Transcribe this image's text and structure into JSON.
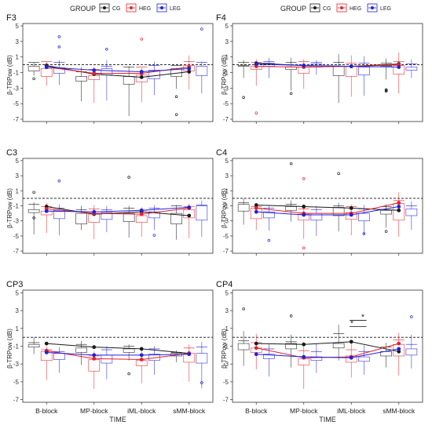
{
  "chart_data": {
    "type": "box",
    "layout": "3x2 grid of panels, each with a legend",
    "legend_title": "GROUP",
    "series": [
      {
        "name": "CG",
        "color": "#1a1a1a"
      },
      {
        "name": "HEG",
        "color": "#e8202a"
      },
      {
        "name": "LEG",
        "color": "#2020e0"
      }
    ],
    "categories": [
      "B-block",
      "MP-block",
      "iML-block",
      "sMM-block"
    ],
    "xlabel": "TIME",
    "ylabel": "β-TRPow (dB)",
    "yticks": [
      5,
      3,
      1,
      -1,
      -3,
      -5,
      -7
    ],
    "ylim": [
      -7.3,
      5.3
    ],
    "reference_line": 0,
    "panels": [
      {
        "title": "F3",
        "means": {
          "CG": [
            -0.1,
            -1.2,
            -1.6,
            -0.9
          ],
          "HEG": [
            -0.3,
            -1.1,
            -1.1,
            -0.3
          ],
          "LEG": [
            -0.3,
            -0.7,
            -0.9,
            -0.5
          ]
        },
        "boxes": {
          "CG": [
            [
              0.3,
              -0.2,
              0.3,
              -0.8,
              -1.4
            ],
            [
              -0.3,
              -1.5,
              -0.9,
              -2.1,
              -4.7
            ],
            [
              -0.2,
              -1.5,
              -0.3,
              -2.5,
              -6.6
            ],
            [
              -0.4,
              -0.5,
              -0.1,
              -1.5,
              -3.1
            ]
          ],
          "HEG": [
            [
              0.4,
              -0.5,
              0.4,
              -1.5,
              -2.7
            ],
            [
              -0.3,
              -1.4,
              -0.6,
              -1.9,
              -4.9
            ],
            [
              -0.4,
              -1.3,
              -0.3,
              -2.2,
              -4.8
            ],
            [
              1.2,
              -0.1,
              0.4,
              -0.8,
              -3.2
            ]
          ],
          "LEG": [
            [
              0.6,
              -0.4,
              0.3,
              -1.1,
              -2.6
            ],
            [
              0.6,
              -0.5,
              -0.2,
              -1.3,
              -4.6
            ],
            [
              0.4,
              -0.7,
              -0.1,
              -1.8,
              -3.9
            ],
            [
              0.4,
              -0.2,
              0.3,
              -1.4,
              -3.7
            ]
          ]
        },
        "outliers": {
          "CG": [
            [
              -1.8
            ],
            [],
            [],
            [
              -4.1,
              -6.4
            ]
          ],
          "HEG": [
            [],
            [],
            [
              3.3
            ],
            []
          ],
          "LEG": [
            [
              2.3,
              3.6
            ],
            [
              2.0
            ],
            [],
            [
              4.6
            ]
          ]
        },
        "significance": []
      },
      {
        "title": "F4",
        "means": {
          "CG": [
            0.2,
            -0.1,
            -0.2,
            0.1
          ],
          "HEG": [
            -0.2,
            -0.3,
            -0.2,
            0.0
          ],
          "LEG": [
            0.1,
            -0.1,
            -0.2,
            -0.3
          ]
        },
        "boxes": {
          "CG": [
            [
              0.6,
              -0.1,
              0.3,
              -0.1,
              -1.7
            ],
            [
              0.9,
              -0.3,
              0.3,
              -0.6,
              -3.3
            ],
            [
              1.4,
              -0.2,
              0.3,
              -1.4,
              -4.9
            ],
            [
              0.8,
              -0.1,
              0.2,
              -0.2,
              -1.9
            ]
          ],
          "HEG": [
            [
              0.7,
              -0.2,
              0.3,
              -0.6,
              -2.7
            ],
            [
              0.7,
              -0.3,
              0.4,
              -1.1,
              -3.1
            ],
            [
              1.2,
              -0.2,
              0.2,
              -1.5,
              -4.1
            ],
            [
              1.6,
              -0.1,
              0.4,
              -1.2,
              -3.7
            ]
          ],
          "LEG": [
            [
              0.9,
              0.2,
              0.4,
              -0.2,
              -1.7
            ],
            [
              0.6,
              0.1,
              0.3,
              -0.3,
              -1.3
            ],
            [
              1.1,
              -0.3,
              0.2,
              -1.3,
              -4.0
            ],
            [
              0.7,
              -0.3,
              0.1,
              -0.7,
              -1.7
            ]
          ]
        },
        "outliers": {
          "CG": [
            [
              -4.2
            ],
            [
              -3.7
            ],
            [],
            [
              -3.2,
              -3.3,
              -3.4
            ]
          ],
          "HEG": [
            [
              -6.2
            ],
            [],
            [],
            []
          ],
          "LEG": [
            [],
            [],
            [],
            []
          ]
        },
        "significance": []
      },
      {
        "title": "C3",
        "means": {
          "CG": [
            -1.1,
            -2.1,
            -1.8,
            -2.3
          ],
          "HEG": [
            -1.4,
            -2.0,
            -2.1,
            -1.3
          ],
          "LEG": [
            -1.7,
            -1.8,
            -1.6,
            -1.2
          ]
        },
        "boxes": {
          "CG": [
            [
              -0.5,
              -1.5,
              -0.8,
              -1.9,
              -4.8
            ],
            [
              -1.0,
              -2.0,
              -1.5,
              -3.4,
              -4.2
            ],
            [
              -1.0,
              -2.0,
              -1.3,
              -3.1,
              -5.2
            ],
            [
              -0.9,
              -2.0,
              -1.0,
              -3.4,
              -5.5
            ]
          ],
          "HEG": [
            [
              -0.6,
              -1.7,
              -1.1,
              -2.2,
              -4.6
            ],
            [
              -0.9,
              -2.1,
              -1.4,
              -3.2,
              -5.4
            ],
            [
              -1.2,
              -2.3,
              -1.6,
              -3.2,
              -5.1
            ],
            [
              -0.7,
              -1.5,
              -1.1,
              -2.6,
              -5.3
            ]
          ],
          "LEG": [
            [
              -0.8,
              -1.6,
              -1.3,
              -2.7,
              -4.9
            ],
            [
              -1.0,
              -1.9,
              -1.5,
              -2.8,
              -4.5
            ],
            [
              -0.9,
              -1.8,
              -1.3,
              -2.6,
              -4.2
            ],
            [
              -0.3,
              -1.0,
              -0.9,
              -2.9,
              -5.1
            ]
          ]
        },
        "outliers": {
          "CG": [
            [
              0.8,
              -2.6
            ],
            [],
            [
              2.8
            ],
            []
          ],
          "HEG": [
            [],
            [],
            [],
            []
          ],
          "LEG": [
            [
              2.3
            ],
            [],
            [
              -4.9
            ],
            []
          ]
        },
        "significance": []
      },
      {
        "title": "C4",
        "means": {
          "CG": [
            -0.9,
            -1.1,
            -1.3,
            -1.6
          ],
          "HEG": [
            -1.3,
            -2.0,
            -2.0,
            -0.6
          ],
          "LEG": [
            -1.8,
            -2.2,
            -2.2,
            -1.1
          ]
        },
        "boxes": {
          "CG": [
            [
              0.0,
              -0.8,
              -0.6,
              -1.7,
              -3.5
            ],
            [
              -0.3,
              -1.1,
              -0.8,
              -1.6,
              -3.1
            ],
            [
              -0.6,
              -1.2,
              -1.0,
              -2.3,
              -4.4
            ],
            [
              -0.8,
              -1.6,
              -1.1,
              -2.1,
              -3.9
            ]
          ],
          "HEG": [
            [
              -0.7,
              -1.3,
              -1.1,
              -2.7,
              -4.2
            ],
            [
              -0.8,
              -2.1,
              -1.4,
              -2.9,
              -5.4
            ],
            [
              -0.8,
              -1.9,
              -1.1,
              -2.8,
              -4.9
            ],
            [
              0.8,
              -0.7,
              -0.3,
              -2.9,
              -5.1
            ]
          ],
          "LEG": [
            [
              -1.0,
              -1.8,
              -1.3,
              -2.6,
              -4.3
            ],
            [
              -1.0,
              -2.0,
              -1.5,
              -2.9,
              -5.0
            ],
            [
              -0.9,
              -2.0,
              -1.4,
              -3.0,
              -4.9
            ],
            [
              -0.4,
              -1.4,
              -1.0,
              -2.3,
              -4.2
            ]
          ]
        },
        "outliers": {
          "CG": [
            [],
            [
              4.6
            ],
            [
              3.3
            ],
            [
              -4.4
            ]
          ],
          "HEG": [
            [],
            [
              2.6,
              -6.6
            ],
            [],
            []
          ],
          "LEG": [
            [
              -5.6
            ],
            [],
            [
              -4.7
            ],
            []
          ]
        },
        "significance": []
      },
      {
        "title": "CP3",
        "means": {
          "CG": [
            -0.7,
            -1.1,
            -1.3,
            -1.8
          ],
          "HEG": [
            -1.5,
            -2.4,
            -2.5,
            -1.8
          ],
          "LEG": [
            -1.7,
            -2.0,
            -2.0,
            -1.9
          ]
        },
        "boxes": {
          "CG": [
            [
              0.0,
              -0.8,
              -0.6,
              -1.1,
              -1.9
            ],
            [
              -0.4,
              -1.2,
              -0.8,
              -1.7,
              -3.1
            ],
            [
              -0.8,
              -1.3,
              -1.0,
              -1.7,
              -2.6
            ],
            [
              -1.5,
              -1.8,
              -1.7,
              -2.1,
              -2.8
            ]
          ],
          "HEG": [
            [
              -1.0,
              -1.6,
              -1.4,
              -2.6,
              -4.8
            ],
            [
              -1.6,
              -2.5,
              -2.1,
              -3.8,
              -5.8
            ],
            [
              -1.4,
              -2.6,
              -2.0,
              -3.2,
              -5.2
            ],
            [
              -0.8,
              -1.8,
              -1.2,
              -2.8,
              -5.0
            ]
          ],
          "LEG": [
            [
              -1.1,
              -1.8,
              -1.6,
              -2.5,
              -4.0
            ],
            [
              -1.0,
              -2.0,
              -1.4,
              -2.9,
              -4.7
            ],
            [
              -1.0,
              -1.9,
              -1.3,
              -2.6,
              -4.2
            ],
            [
              -0.5,
              -1.8,
              -1.1,
              -2.9,
              -5.7
            ]
          ]
        },
        "outliers": {
          "CG": [
            [],
            [],
            [
              -4.1
            ],
            []
          ],
          "HEG": [
            [],
            [],
            [],
            []
          ],
          "LEG": [
            [],
            [],
            [],
            [
              -5.1
            ]
          ]
        },
        "significance": []
      },
      {
        "title": "CP4",
        "means": {
          "CG": [
            -0.7,
            -0.8,
            -0.5,
            -1.6
          ],
          "HEG": [
            -1.2,
            -2.3,
            -2.2,
            -0.7
          ],
          "LEG": [
            -1.9,
            -2.2,
            -2.3,
            -1.3
          ]
        },
        "boxes": {
          "CG": [
            [
              0.7,
              -0.7,
              -0.4,
              -1.4,
              -3.2
            ],
            [
              0.3,
              -0.7,
              -0.5,
              -1.3,
              -3.4
            ],
            [
              1.4,
              -0.7,
              0.4,
              -1.2,
              -2.6
            ],
            [
              -0.6,
              -1.6,
              -1.1,
              -2.1,
              -3.4
            ]
          ],
          "HEG": [
            [
              0.4,
              -1.2,
              -0.6,
              -1.7,
              -3.6
            ],
            [
              -0.5,
              -2.4,
              -1.5,
              -3.1,
              -5.8
            ],
            [
              -0.5,
              -2.1,
              -1.4,
              -2.8,
              -4.5
            ],
            [
              0.5,
              -0.8,
              -0.3,
              -2.1,
              -4.3
            ]
          ],
          "LEG": [
            [
              -0.7,
              -1.9,
              -1.3,
              -2.4,
              -4.4
            ],
            [
              -0.7,
              -2.2,
              -1.6,
              -2.6,
              -4.0
            ],
            [
              -0.9,
              -2.2,
              -1.6,
              -2.7,
              -4.2
            ],
            [
              0.3,
              -1.3,
              -0.8,
              -2.0,
              -3.5
            ]
          ]
        },
        "outliers": {
          "CG": [
            [
              3.2
            ],
            [
              2.4
            ],
            [],
            []
          ],
          "HEG": [
            [],
            [],
            [],
            []
          ],
          "LEG": [
            [],
            [],
            [],
            [
              2.3
            ]
          ]
        },
        "significance": [
          {
            "block": "iML-block",
            "label": "*",
            "y": 1.9
          },
          {
            "block": "iML-block",
            "label": "*",
            "y": 1.2
          }
        ]
      }
    ]
  }
}
